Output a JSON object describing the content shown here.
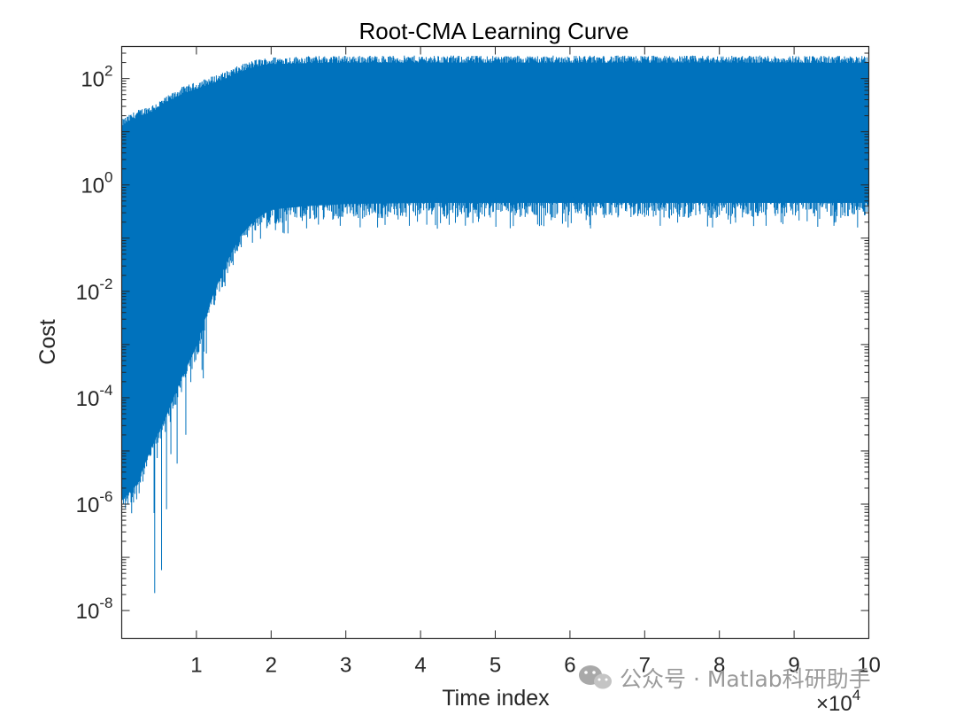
{
  "chart_data": {
    "type": "line",
    "title": "Root-CMA Learning Curve",
    "xlabel": "Time index",
    "ylabel": "Cost",
    "x_exponent_label": "×10",
    "x_exponent_power": "4",
    "x_scale_factor": 10000,
    "xlim": [
      0,
      100000
    ],
    "ylim": [
      3e-09,
      400
    ],
    "yscale": "log",
    "grid": false,
    "x_ticks": [
      1,
      2,
      3,
      4,
      5,
      6,
      7,
      8,
      9,
      10
    ],
    "y_ticks": [
      {
        "base": "10",
        "exp": "-8"
      },
      {
        "base": "10",
        "exp": "-6"
      },
      {
        "base": "10",
        "exp": "-4"
      },
      {
        "base": "10",
        "exp": "-2"
      },
      {
        "base": "10",
        "exp": "0"
      },
      {
        "base": "10",
        "exp": "2"
      }
    ],
    "series": [
      {
        "color": "#0072BD",
        "envelope": {
          "x": [
            0,
            2000,
            4000,
            6000,
            8000,
            10000,
            12000,
            14000,
            16000,
            18000,
            20000,
            25000,
            30000,
            40000,
            50000,
            60000,
            70000,
            80000,
            90000,
            100000
          ],
          "upper": [
            15,
            22,
            28,
            40,
            60,
            75,
            95,
            120,
            160,
            200,
            220,
            230,
            235,
            235,
            235,
            235,
            235,
            235,
            235,
            230
          ],
          "lower_dense": [
            1e-06,
            2e-06,
            1e-05,
            4e-05,
            0.0002,
            0.0008,
            0.006,
            0.03,
            0.1,
            0.2,
            0.3,
            0.35,
            0.38,
            0.4,
            0.4,
            0.4,
            0.4,
            0.4,
            0.4,
            0.4
          ],
          "lower_spikes": [
            1e-07,
            1e-07,
            5e-09,
            5e-08,
            5e-06,
            0.0001,
            0.0005,
            0.005,
            0.03,
            0.08,
            0.1,
            0.15,
            0.15,
            0.15,
            0.15,
            0.15,
            0.15,
            0.15,
            0.15,
            0.15
          ]
        }
      }
    ]
  },
  "watermark": {
    "icon": "wechat-icon",
    "text": "公众号 · Matlab科研助手"
  }
}
